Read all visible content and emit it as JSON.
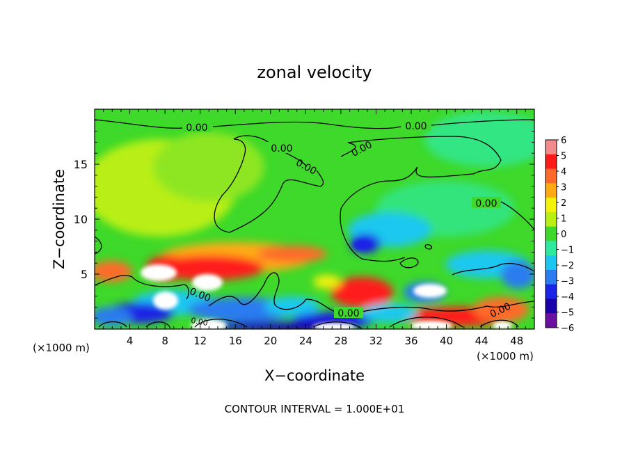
{
  "chart_data": {
    "type": "heatmap",
    "title": "zonal velocity",
    "xlabel": "X−coordinate",
    "ylabel": "Z−coordinate",
    "x_unit_left": "(×1000 m)",
    "x_unit_right": "(×1000 m)",
    "footer": "CONTOUR INTERVAL = 1.000E+01",
    "xlim": [
      0,
      50
    ],
    "ylim": [
      0,
      20
    ],
    "x_ticks": [
      "4",
      "8",
      "12",
      "16",
      "20",
      "24",
      "28",
      "32",
      "36",
      "40",
      "44",
      "48"
    ],
    "y_ticks": [
      "5",
      "10",
      "15"
    ],
    "colorbar": {
      "levels": [
        "6",
        "5",
        "4",
        "3",
        "2",
        "1",
        "0",
        "−1",
        "−2",
        "−3",
        "−4",
        "−5",
        "−6"
      ],
      "colors": [
        "#f28c8c",
        "#ff1a1a",
        "#ff6a2a",
        "#ffaa14",
        "#f2f20a",
        "#b9ef12",
        "#3ed92a",
        "#2ee8a0",
        "#1ac7f0",
        "#2a7cf0",
        "#1a24e6",
        "#1a00a8",
        "#6a0fa0"
      ]
    },
    "contour_labels": [
      "0.00",
      "0.00",
      "0.00",
      "0.00",
      "0.00",
      "0.00",
      "0.00",
      "0.00",
      "0.00",
      "0.00"
    ]
  }
}
